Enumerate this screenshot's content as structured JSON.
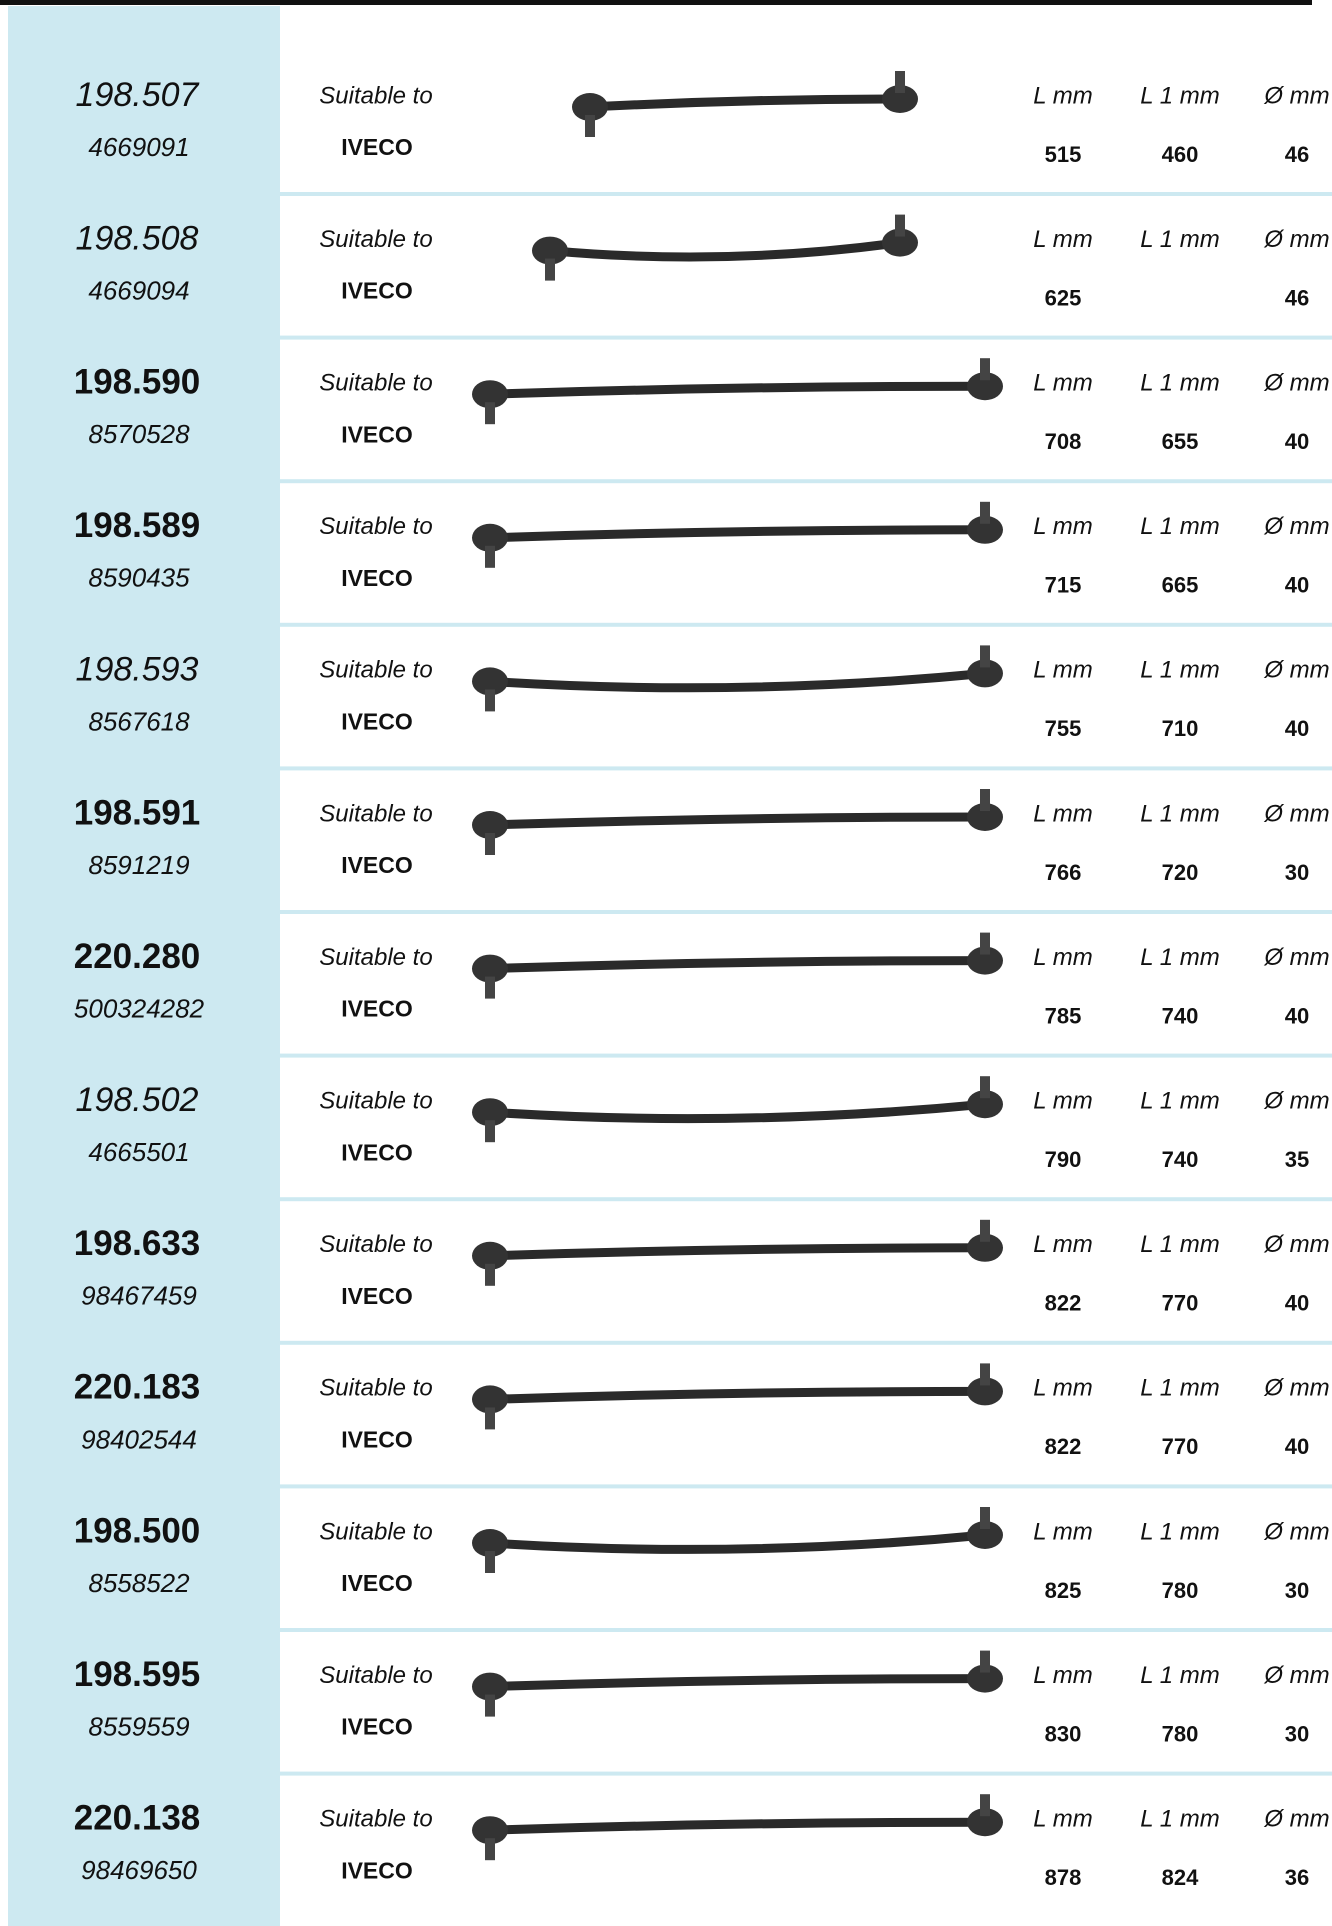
{
  "brand_label": "Suitable to",
  "columns": [
    "L mm",
    "L 1 mm",
    "Ø mm"
  ],
  "rows": [
    {
      "code": "198.507",
      "emphasis": "italic",
      "oe": "4669091",
      "make": "IVECO",
      "values": [
        "515",
        "460",
        "46"
      ]
    },
    {
      "code": "198.508",
      "emphasis": "italic",
      "oe": "4669094",
      "make": "IVECO",
      "values": [
        "625",
        null,
        "46"
      ]
    },
    {
      "code": "198.590",
      "emphasis": "bold",
      "oe": "8570528",
      "make": "IVECO",
      "values": [
        "708",
        "655",
        "40"
      ]
    },
    {
      "code": "198.589",
      "emphasis": "bold",
      "oe": "8590435",
      "make": "IVECO",
      "values": [
        "715",
        "665",
        "40"
      ]
    },
    {
      "code": "198.593",
      "emphasis": "italic",
      "oe": "8567618",
      "make": "IVECO",
      "values": [
        "755",
        "710",
        "40"
      ]
    },
    {
      "code": "198.591",
      "emphasis": "bold",
      "oe": "8591219",
      "make": "IVECO",
      "values": [
        "766",
        "720",
        "30"
      ]
    },
    {
      "code": "220.280",
      "emphasis": "bold",
      "oe": "500324282",
      "make": "IVECO",
      "values": [
        "785",
        "740",
        "40"
      ]
    },
    {
      "code": "198.502",
      "emphasis": "italic",
      "oe": "4665501",
      "make": "IVECO",
      "values": [
        "790",
        "740",
        "35"
      ]
    },
    {
      "code": "198.633",
      "emphasis": "bold",
      "oe": "98467459",
      "make": "IVECO",
      "values": [
        "822",
        "770",
        "40"
      ]
    },
    {
      "code": "220.183",
      "emphasis": "bold",
      "oe": "98402544",
      "make": "IVECO",
      "values": [
        "822",
        "770",
        "40"
      ]
    },
    {
      "code": "198.500",
      "emphasis": "bold",
      "oe": "8558522",
      "make": "IVECO",
      "values": [
        "825",
        "780",
        "30"
      ]
    },
    {
      "code": "198.595",
      "emphasis": "bold",
      "oe": "8559559",
      "make": "IVECO",
      "values": [
        "830",
        "780",
        "30"
      ]
    },
    {
      "code": "220.138",
      "emphasis": "bold",
      "oe": "98469650",
      "make": "IVECO",
      "values": [
        "878",
        "824",
        "36"
      ]
    }
  ]
}
